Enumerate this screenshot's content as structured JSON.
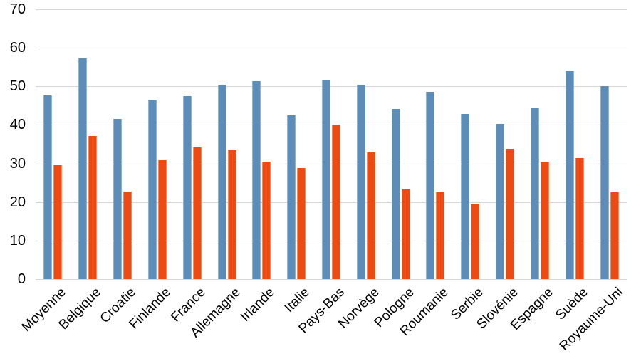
{
  "chart_data": {
    "type": "bar",
    "title": "",
    "xlabel": "",
    "ylabel": "",
    "categories": [
      "Moyenne",
      "Belgique",
      "Croatie",
      "Finlande",
      "France",
      "Allemagne",
      "Irlande",
      "Italie",
      "Pays-Bas",
      "Norvège",
      "Pologne",
      "Roumanie",
      "Serbie",
      "Slovénie",
      "Espagne",
      "Suède",
      "Royaume-Uni"
    ],
    "series": [
      {
        "name": "blue",
        "color": "#5B8DB8",
        "edge_color": "#93B3CB",
        "values": [
          47.7,
          57.2,
          41.6,
          46.4,
          47.4,
          50.4,
          51.3,
          42.5,
          51.7,
          50.4,
          44.1,
          48.6,
          42.9,
          40.2,
          44.3,
          54.0,
          50.0
        ]
      },
      {
        "name": "orange",
        "color": "#EE4B14",
        "edge_color": "#F5875C",
        "values": [
          29.5,
          37.2,
          22.8,
          30.8,
          34.1,
          33.4,
          30.5,
          28.8,
          40.0,
          32.8,
          23.2,
          22.6,
          19.4,
          33.8,
          30.3,
          31.4,
          22.5
        ]
      }
    ],
    "ylim": [
      0,
      70
    ],
    "yticks": [
      0,
      10,
      20,
      30,
      40,
      50,
      60,
      70
    ],
    "grid": true,
    "legend_position": "none",
    "gridline_color": "#D6D6D6",
    "axis_label_color": "#000000",
    "background_color": "#FFFFFF"
  }
}
